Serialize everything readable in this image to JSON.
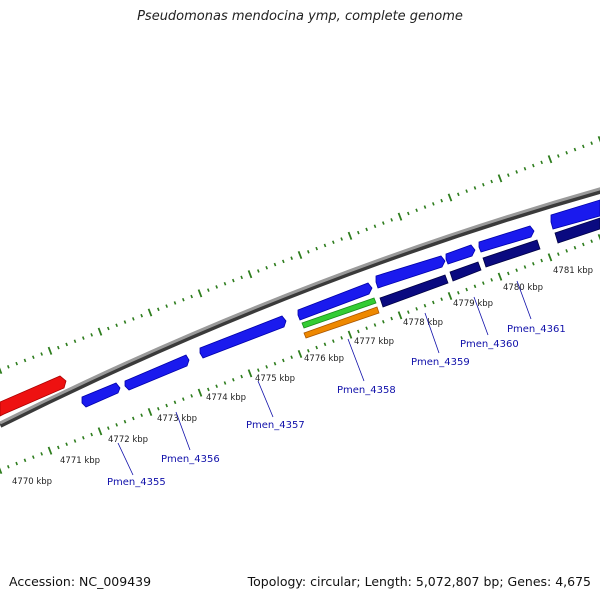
{
  "title": "Pseudomonas mendocina ymp, complete genome",
  "footer": {
    "accession": "Accession: NC_009439",
    "summary": "Topology: circular; Length: 5,072,807 bp; Genes: 4,675"
  },
  "colors": {
    "backbone": "#8a8a8a",
    "tick": "#2e7d1e",
    "cds_forward": "#1a1aee",
    "cds_reverse": "#0a0a80",
    "highlight": "#ee1111",
    "rna_green": "#33cc33",
    "rna_orange": "#ee8800",
    "label": "#1010aa"
  },
  "scale_labels": [
    "4770 kbp",
    "4771 kbp",
    "4772 kbp",
    "4773 kbp",
    "4774 kbp",
    "4775 kbp",
    "4776 kbp",
    "4777 kbp",
    "4778 kbp",
    "4779 kbp",
    "4780 kbp",
    "4781 kbp"
  ],
  "gene_labels": [
    "Pmen_4355",
    "Pmen_4356",
    "Pmen_4357",
    "Pmen_4358",
    "Pmen_4359",
    "Pmen_4360",
    "Pmen_4361"
  ]
}
